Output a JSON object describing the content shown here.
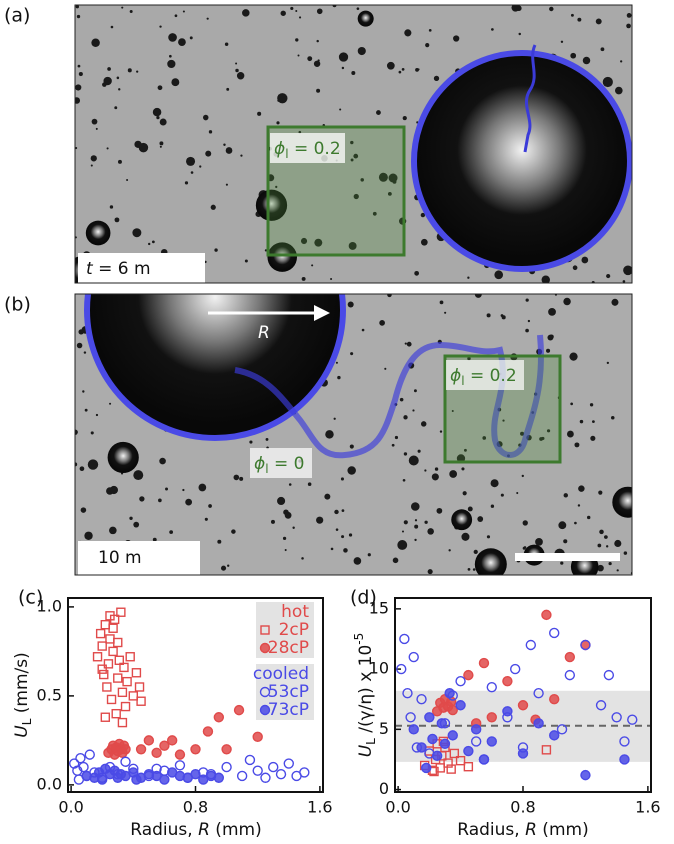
{
  "panels": [
    {
      "label": "(a)",
      "phi": {
        "symbol": "ϕ",
        "sub": "l",
        "rest": " = 0.2"
      },
      "time": {
        "var": "t",
        "rest": " = 6 m"
      }
    },
    {
      "label": "(b)",
      "radius": "R",
      "phi_zero": {
        "symbol": "ϕ",
        "sub": "l",
        "rest": " = 0"
      },
      "phi": {
        "symbol": "ϕ",
        "sub": "l",
        "rest": " = 0.2"
      },
      "time": "10 m"
    }
  ],
  "chart_data": [
    {
      "type": "scatter",
      "label": "(c)",
      "y_label": {
        "var": "U",
        "sub": "L",
        "rest": " (mm/s)"
      },
      "x_label": {
        "text": "Radius, ",
        "var": "R",
        "unit": " (mm)"
      },
      "xlim": [
        -0.02,
        1.62
      ],
      "xticks": [
        {
          "value": 0,
          "label": "0.0"
        },
        0.8,
        1.6
      ],
      "ylim": [
        -0.04,
        1.05
      ],
      "yticks": [
        {
          "value": 0,
          "label": "0.0"
        },
        0.5,
        {
          "value": 1,
          "label": "1.0"
        }
      ],
      "legend_groups": [
        "hot",
        "cooled"
      ],
      "series": [
        {
          "name": "2cP",
          "group": "hot",
          "color": "#e04a4a",
          "marker": "square",
          "filled": false,
          "x": [
            0.17,
            0.19,
            0.2,
            0.21,
            0.22,
            0.23,
            0.24,
            0.25,
            0.26,
            0.27,
            0.28,
            0.29,
            0.3,
            0.31,
            0.32,
            0.33,
            0.34,
            0.35,
            0.36,
            0.38,
            0.4,
            0.42,
            0.44,
            0.45,
            0.22,
            0.27,
            0.3,
            0.33,
            0.25,
            0.2
          ],
          "y": [
            0.72,
            0.85,
            0.78,
            0.62,
            0.9,
            0.55,
            0.68,
            0.82,
            0.48,
            0.75,
            0.93,
            0.4,
            0.6,
            0.7,
            0.97,
            0.52,
            0.66,
            0.44,
            0.58,
            0.72,
            0.5,
            0.63,
            0.55,
            0.47,
            0.38,
            0.88,
            0.8,
            0.35,
            0.95,
            0.65
          ]
        },
        {
          "name": "28cP",
          "group": "hot",
          "color": "#e04a4a",
          "marker": "circle",
          "filled": true,
          "x": [
            0.24,
            0.26,
            0.27,
            0.28,
            0.29,
            0.3,
            0.31,
            0.32,
            0.33,
            0.34,
            0.35,
            0.5,
            0.55,
            0.6,
            0.7,
            0.8,
            0.88,
            0.95,
            1.0,
            1.08,
            1.2,
            0.45,
            0.65
          ],
          "y": [
            0.18,
            0.2,
            0.22,
            0.17,
            0.21,
            0.19,
            0.23,
            0.2,
            0.18,
            0.22,
            0.2,
            0.25,
            0.18,
            0.22,
            0.17,
            0.2,
            0.3,
            0.38,
            0.2,
            0.42,
            0.27,
            0.2,
            0.25
          ]
        },
        {
          "name": "53cP",
          "group": "cooled",
          "color": "#4a4ae6",
          "marker": "circle",
          "filled": false,
          "x": [
            0.02,
            0.04,
            0.06,
            0.08,
            0.1,
            0.12,
            0.15,
            0.2,
            0.25,
            0.3,
            0.4,
            0.5,
            0.6,
            0.7,
            0.75,
            0.85,
            0.9,
            1.0,
            1.1,
            1.15,
            1.2,
            1.25,
            1.3,
            1.35,
            1.4,
            1.45,
            1.5,
            0.05,
            0.35,
            0.55
          ],
          "y": [
            0.12,
            0.08,
            0.15,
            0.1,
            0.05,
            0.17,
            0.07,
            0.04,
            0.1,
            0.06,
            0.09,
            0.05,
            0.08,
            0.11,
            0.04,
            0.07,
            0.06,
            0.1,
            0.05,
            0.14,
            0.08,
            0.04,
            0.1,
            0.06,
            0.12,
            0.05,
            0.07,
            0.03,
            0.13,
            0.09
          ]
        },
        {
          "name": "73cP",
          "group": "cooled",
          "color": "#4a4ae6",
          "marker": "circle",
          "filled": true,
          "x": [
            0.1,
            0.15,
            0.18,
            0.2,
            0.25,
            0.28,
            0.3,
            0.35,
            0.4,
            0.45,
            0.5,
            0.55,
            0.6,
            0.65,
            0.7,
            0.75,
            0.8,
            0.85,
            0.9,
            0.95,
            0.22,
            0.32,
            0.42
          ],
          "y": [
            0.05,
            0.04,
            0.07,
            0.03,
            0.06,
            0.08,
            0.04,
            0.05,
            0.07,
            0.04,
            0.06,
            0.05,
            0.03,
            0.07,
            0.05,
            0.04,
            0.06,
            0.03,
            0.05,
            0.04,
            0.09,
            0.06,
            0.03
          ]
        }
      ]
    },
    {
      "type": "scatter",
      "label": "(d)",
      "y_label": {
        "var": "U",
        "sub": "L",
        "rest": " /(γ/η) x 10",
        "sup": "-5"
      },
      "x_label": {
        "text": "Radius, ",
        "var": "R",
        "unit": " (mm)"
      },
      "xlim": [
        -0.02,
        1.62
      ],
      "xticks": [
        {
          "value": 0,
          "label": "0.0"
        },
        0.8,
        1.6
      ],
      "ylim": [
        -0.2,
        15.9
      ],
      "yticks": [
        0,
        5,
        10,
        15
      ],
      "band": [
        2.3,
        8.2
      ],
      "hline": 5.3,
      "series": [
        {
          "name": "2cP",
          "color": "#e04a4a",
          "marker": "square",
          "filled": false,
          "x": [
            0.17,
            0.2,
            0.22,
            0.24,
            0.25,
            0.27,
            0.28,
            0.3,
            0.32,
            0.34,
            0.36,
            0.4,
            0.45,
            0.95,
            0.23,
            0.29
          ],
          "y": [
            2.0,
            3.2,
            1.6,
            2.5,
            3.8,
            1.8,
            2.8,
            3.5,
            2.2,
            1.7,
            3.0,
            2.4,
            1.9,
            3.3,
            1.5,
            4.0
          ]
        },
        {
          "name": "28cP",
          "color": "#e04a4a",
          "marker": "circle",
          "filled": true,
          "x": [
            0.25,
            0.27,
            0.29,
            0.3,
            0.32,
            0.34,
            0.35,
            0.5,
            0.55,
            0.6,
            0.7,
            0.8,
            0.88,
            0.95,
            1.0,
            1.1,
            1.2,
            0.45
          ],
          "y": [
            6.5,
            7.2,
            6.8,
            7.5,
            6.9,
            7.3,
            6.6,
            5.5,
            10.5,
            6.0,
            9.0,
            7.0,
            5.8,
            14.5,
            7.5,
            11.0,
            12.0,
            9.5
          ]
        },
        {
          "name": "53cP",
          "color": "#4a4ae6",
          "marker": "circle",
          "filled": false,
          "x": [
            0.02,
            0.04,
            0.06,
            0.08,
            0.1,
            0.15,
            0.2,
            0.3,
            0.4,
            0.5,
            0.6,
            0.7,
            0.75,
            0.8,
            0.9,
            1.0,
            1.05,
            1.1,
            1.2,
            1.3,
            1.35,
            1.4,
            1.45,
            1.5,
            0.12,
            0.35,
            0.55,
            0.85
          ],
          "y": [
            10,
            12.5,
            8,
            6,
            11,
            7.5,
            3,
            5.5,
            9,
            4,
            8.5,
            6,
            10,
            3.5,
            8,
            13,
            5,
            9.5,
            12,
            7,
            9.5,
            6,
            4,
            5.8,
            3.5,
            7.8,
            2.5,
            12
          ]
        },
        {
          "name": "73cP",
          "color": "#4a4ae6",
          "marker": "circle",
          "filled": true,
          "x": [
            0.1,
            0.15,
            0.2,
            0.22,
            0.25,
            0.28,
            0.3,
            0.35,
            0.4,
            0.45,
            0.5,
            0.55,
            0.6,
            0.7,
            0.8,
            0.9,
            1.0,
            1.2,
            1.45,
            0.18,
            0.33
          ],
          "y": [
            5,
            3.5,
            6,
            4.2,
            2.8,
            5.5,
            3.8,
            4.5,
            7,
            3.2,
            5,
            2.5,
            4,
            6.5,
            3,
            5.5,
            4.5,
            1.2,
            2.5,
            1.8,
            8
          ]
        }
      ]
    }
  ]
}
